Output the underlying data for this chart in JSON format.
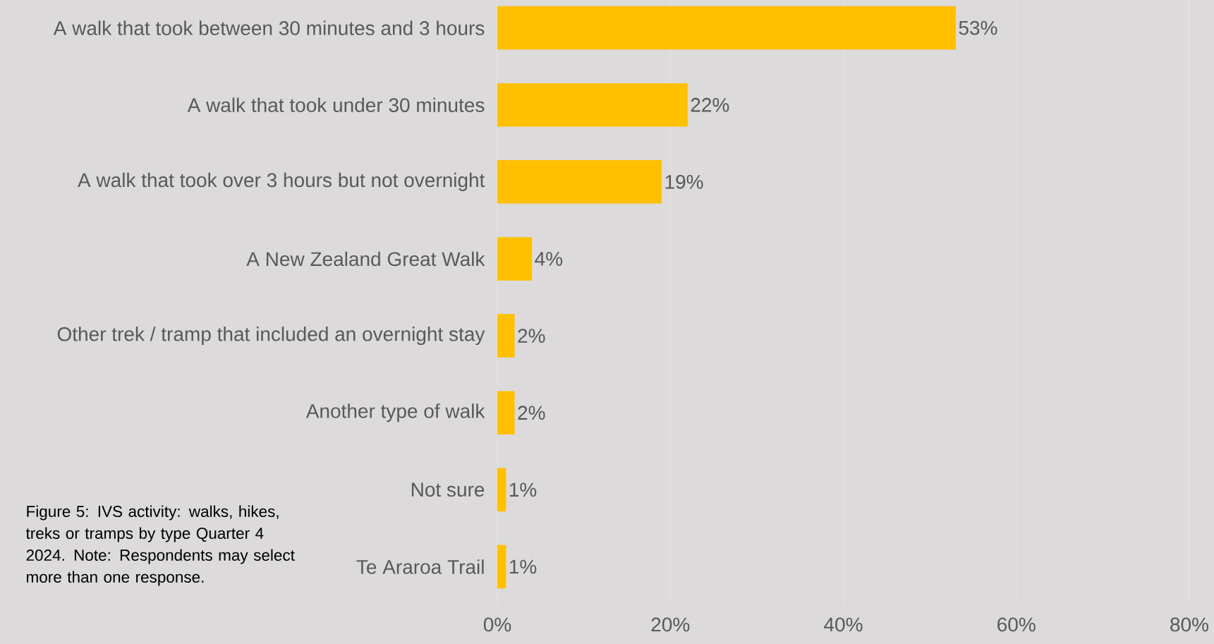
{
  "chart_data": {
    "type": "bar",
    "orientation": "horizontal",
    "categories": [
      "A walk that took between 30 minutes and 3 hours",
      "A walk that took under 30 minutes",
      "A walk that took over 3 hours but not overnight",
      "A New Zealand Great Walk",
      "Other trek / tramp that included an overnight stay",
      "Another type of walk",
      "Not sure",
      "Te Araroa Trail"
    ],
    "values": [
      53,
      22,
      19,
      4,
      2,
      2,
      1,
      1
    ],
    "value_labels": [
      "53%",
      "22%",
      "19%",
      "4%",
      "2%",
      "2%",
      "1%",
      "1%"
    ],
    "color": "#ffc000",
    "xlim": [
      0,
      80
    ],
    "xticks": [
      {
        "value": 0,
        "label": "0%"
      },
      {
        "value": 20,
        "label": "20%"
      },
      {
        "value": 40,
        "label": "40%"
      },
      {
        "value": 60,
        "label": "60%"
      },
      {
        "value": 80,
        "label": "80%"
      }
    ],
    "grid": "x",
    "annotations": [
      "Figure 5: IVS activity: walks, hikes, treks or tramps by type Quarter 4 2024. Note: Respondents may select more than one response."
    ]
  }
}
